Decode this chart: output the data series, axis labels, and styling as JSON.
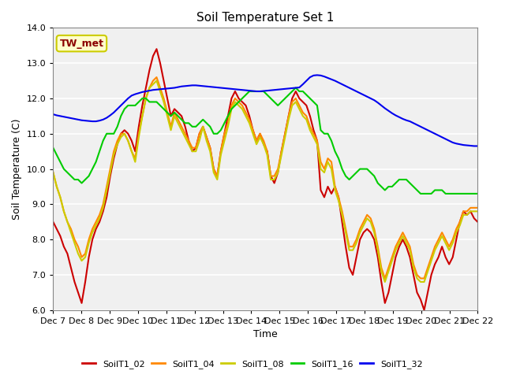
{
  "title": "Soil Temperature Set 1",
  "xlabel": "Time",
  "ylabel": "Soil Temperature (C)",
  "ylim": [
    6.0,
    14.0
  ],
  "yticks": [
    6.0,
    7.0,
    8.0,
    9.0,
    10.0,
    11.0,
    12.0,
    13.0,
    14.0
  ],
  "ytick_labels": [
    "6.0",
    "7.0",
    "8.0",
    "9.0",
    "10.0",
    "11.0",
    "12.0",
    "13.0",
    "14.0"
  ],
  "x_labels": [
    "Dec 7",
    "Dec 8",
    "Dec 9",
    "Dec 10",
    "Dec 11",
    "Dec 12",
    "Dec 13",
    "Dec 14",
    "Dec 15",
    "Dec 16",
    "Dec 17",
    "Dec 18",
    "Dec 19",
    "Dec 20",
    "Dec 21",
    "Dec 22"
  ],
  "annotation": "TW_met",
  "annotation_color": "#8B0000",
  "annotation_bg": "#FFFFCC",
  "annotation_edge": "#CCCC00",
  "colors": {
    "SoilT1_02": "#CC0000",
    "SoilT1_04": "#FF8800",
    "SoilT1_08": "#CCCC00",
    "SoilT1_16": "#00CC00",
    "SoilT1_32": "#0000EE"
  },
  "bg_color": "#E8E8E8",
  "plot_bg": "#F0F0F0",
  "grid_color": "#FFFFFF",
  "linewidth": 1.5,
  "series": {
    "SoilT1_02": [
      8.5,
      8.3,
      8.1,
      7.8,
      7.6,
      7.2,
      6.8,
      6.5,
      6.2,
      6.8,
      7.5,
      8.0,
      8.3,
      8.5,
      8.8,
      9.2,
      9.8,
      10.3,
      10.7,
      11.0,
      11.1,
      11.0,
      10.8,
      10.5,
      11.2,
      11.8,
      12.3,
      12.8,
      13.2,
      13.4,
      13.0,
      12.5,
      12.0,
      11.5,
      11.7,
      11.6,
      11.5,
      11.2,
      10.8,
      10.5,
      10.6,
      11.0,
      11.2,
      10.9,
      10.6,
      10.0,
      9.8,
      10.5,
      11.0,
      11.5,
      12.0,
      12.2,
      12.0,
      11.9,
      11.8,
      11.5,
      11.1,
      10.8,
      11.0,
      10.7,
      10.5,
      9.8,
      9.6,
      9.9,
      10.5,
      11.0,
      11.5,
      12.0,
      12.2,
      12.0,
      11.9,
      11.8,
      11.5,
      11.1,
      10.8,
      9.4,
      9.2,
      9.5,
      9.3,
      9.5,
      9.2,
      8.5,
      7.8,
      7.2,
      7.0,
      7.5,
      8.0,
      8.2,
      8.3,
      8.2,
      8.0,
      7.5,
      6.8,
      6.2,
      6.5,
      7.0,
      7.5,
      7.8,
      8.0,
      7.8,
      7.5,
      7.0,
      6.5,
      6.3,
      6.0,
      6.5,
      7.0,
      7.3,
      7.5,
      7.8,
      7.5,
      7.3,
      7.5,
      8.0,
      8.5,
      8.8,
      8.7,
      8.8,
      8.6,
      8.5
    ],
    "SoilT1_04": [
      9.9,
      9.5,
      9.2,
      8.8,
      8.5,
      8.3,
      8.0,
      7.8,
      7.5,
      7.6,
      8.0,
      8.3,
      8.5,
      8.7,
      9.0,
      9.5,
      10.0,
      10.5,
      10.8,
      11.0,
      11.0,
      10.8,
      10.5,
      10.3,
      11.0,
      11.5,
      12.0,
      12.3,
      12.5,
      12.6,
      12.3,
      12.0,
      11.6,
      11.2,
      11.6,
      11.4,
      11.2,
      11.0,
      10.8,
      10.6,
      10.6,
      11.0,
      11.2,
      10.9,
      10.6,
      10.0,
      9.8,
      10.5,
      11.0,
      11.3,
      11.8,
      12.0,
      11.9,
      11.8,
      11.6,
      11.4,
      11.1,
      10.8,
      11.0,
      10.8,
      10.5,
      9.8,
      9.8,
      10.0,
      10.5,
      11.0,
      11.5,
      11.9,
      12.0,
      11.8,
      11.6,
      11.5,
      11.2,
      11.0,
      10.8,
      10.2,
      10.0,
      10.3,
      10.2,
      9.5,
      9.2,
      8.8,
      8.3,
      7.8,
      7.8,
      8.0,
      8.3,
      8.5,
      8.7,
      8.6,
      8.3,
      7.8,
      7.2,
      6.9,
      7.2,
      7.5,
      7.8,
      8.0,
      8.2,
      8.0,
      7.8,
      7.3,
      7.0,
      6.9,
      6.9,
      7.2,
      7.5,
      7.8,
      8.0,
      8.2,
      8.0,
      7.8,
      8.0,
      8.3,
      8.5,
      8.8,
      8.8,
      8.9,
      8.9,
      8.9
    ],
    "SoilT1_08": [
      9.9,
      9.5,
      9.2,
      8.8,
      8.5,
      8.2,
      7.9,
      7.6,
      7.4,
      7.5,
      7.9,
      8.2,
      8.4,
      8.6,
      8.9,
      9.4,
      9.9,
      10.4,
      10.7,
      10.9,
      11.0,
      10.8,
      10.5,
      10.2,
      10.9,
      11.5,
      12.0,
      12.3,
      12.4,
      12.5,
      12.2,
      11.9,
      11.5,
      11.1,
      11.5,
      11.3,
      11.1,
      10.9,
      10.7,
      10.5,
      10.5,
      10.8,
      11.2,
      10.8,
      10.5,
      9.9,
      9.7,
      10.4,
      10.8,
      11.2,
      11.7,
      11.9,
      11.8,
      11.7,
      11.5,
      11.3,
      11.0,
      10.7,
      10.9,
      10.7,
      10.4,
      9.7,
      9.7,
      9.9,
      10.4,
      10.9,
      11.4,
      11.8,
      11.9,
      11.7,
      11.5,
      11.4,
      11.1,
      10.9,
      10.7,
      10.0,
      9.9,
      10.2,
      10.0,
      9.4,
      9.1,
      8.7,
      8.2,
      7.7,
      7.7,
      7.9,
      8.2,
      8.4,
      8.6,
      8.5,
      8.2,
      7.7,
      7.1,
      6.8,
      7.1,
      7.4,
      7.7,
      7.9,
      8.1,
      7.9,
      7.7,
      7.2,
      6.9,
      6.8,
      6.8,
      7.1,
      7.4,
      7.7,
      7.9,
      8.1,
      7.9,
      7.7,
      7.9,
      8.2,
      8.4,
      8.7,
      8.7,
      8.8,
      8.8,
      8.8
    ],
    "SoilT1_16": [
      10.6,
      10.4,
      10.2,
      10.0,
      9.9,
      9.8,
      9.7,
      9.7,
      9.6,
      9.7,
      9.8,
      10.0,
      10.2,
      10.5,
      10.8,
      11.0,
      11.0,
      11.0,
      11.2,
      11.5,
      11.7,
      11.8,
      11.8,
      11.8,
      11.9,
      12.0,
      12.0,
      11.9,
      11.9,
      11.9,
      11.8,
      11.7,
      11.6,
      11.5,
      11.6,
      11.5,
      11.4,
      11.3,
      11.3,
      11.2,
      11.2,
      11.3,
      11.4,
      11.3,
      11.2,
      11.0,
      11.0,
      11.1,
      11.3,
      11.5,
      11.7,
      11.8,
      11.9,
      12.0,
      12.1,
      12.2,
      12.2,
      12.2,
      12.2,
      12.2,
      12.1,
      12.0,
      11.9,
      11.8,
      11.9,
      12.0,
      12.1,
      12.2,
      12.3,
      12.2,
      12.2,
      12.1,
      12.0,
      11.9,
      11.8,
      11.1,
      11.0,
      11.0,
      10.8,
      10.5,
      10.3,
      10.0,
      9.8,
      9.7,
      9.8,
      9.9,
      10.0,
      10.0,
      10.0,
      9.9,
      9.8,
      9.6,
      9.5,
      9.4,
      9.5,
      9.5,
      9.6,
      9.7,
      9.7,
      9.7,
      9.6,
      9.5,
      9.4,
      9.3,
      9.3,
      9.3,
      9.3,
      9.4,
      9.4,
      9.4,
      9.3,
      9.3,
      9.3,
      9.3,
      9.3,
      9.3,
      9.3,
      9.3,
      9.3,
      9.3
    ],
    "SoilT1_32": [
      11.55,
      11.52,
      11.5,
      11.48,
      11.46,
      11.44,
      11.42,
      11.4,
      11.38,
      11.37,
      11.36,
      11.35,
      11.35,
      11.37,
      11.4,
      11.45,
      11.52,
      11.6,
      11.7,
      11.8,
      11.9,
      12.0,
      12.08,
      12.12,
      12.15,
      12.18,
      12.2,
      12.22,
      12.24,
      12.25,
      12.26,
      12.27,
      12.28,
      12.29,
      12.3,
      12.32,
      12.34,
      12.35,
      12.36,
      12.37,
      12.37,
      12.36,
      12.35,
      12.34,
      12.33,
      12.32,
      12.31,
      12.3,
      12.29,
      12.28,
      12.27,
      12.26,
      12.25,
      12.24,
      12.23,
      12.22,
      12.21,
      12.2,
      12.2,
      12.21,
      12.22,
      12.23,
      12.24,
      12.25,
      12.26,
      12.27,
      12.28,
      12.29,
      12.3,
      12.31,
      12.4,
      12.5,
      12.6,
      12.65,
      12.66,
      12.65,
      12.62,
      12.58,
      12.54,
      12.5,
      12.45,
      12.4,
      12.35,
      12.3,
      12.25,
      12.2,
      12.15,
      12.1,
      12.05,
      12.0,
      11.95,
      11.88,
      11.8,
      11.72,
      11.65,
      11.58,
      11.52,
      11.47,
      11.42,
      11.38,
      11.35,
      11.3,
      11.25,
      11.2,
      11.15,
      11.1,
      11.05,
      11.0,
      10.95,
      10.9,
      10.85,
      10.8,
      10.75,
      10.72,
      10.7,
      10.68,
      10.67,
      10.66,
      10.65,
      10.65
    ]
  }
}
